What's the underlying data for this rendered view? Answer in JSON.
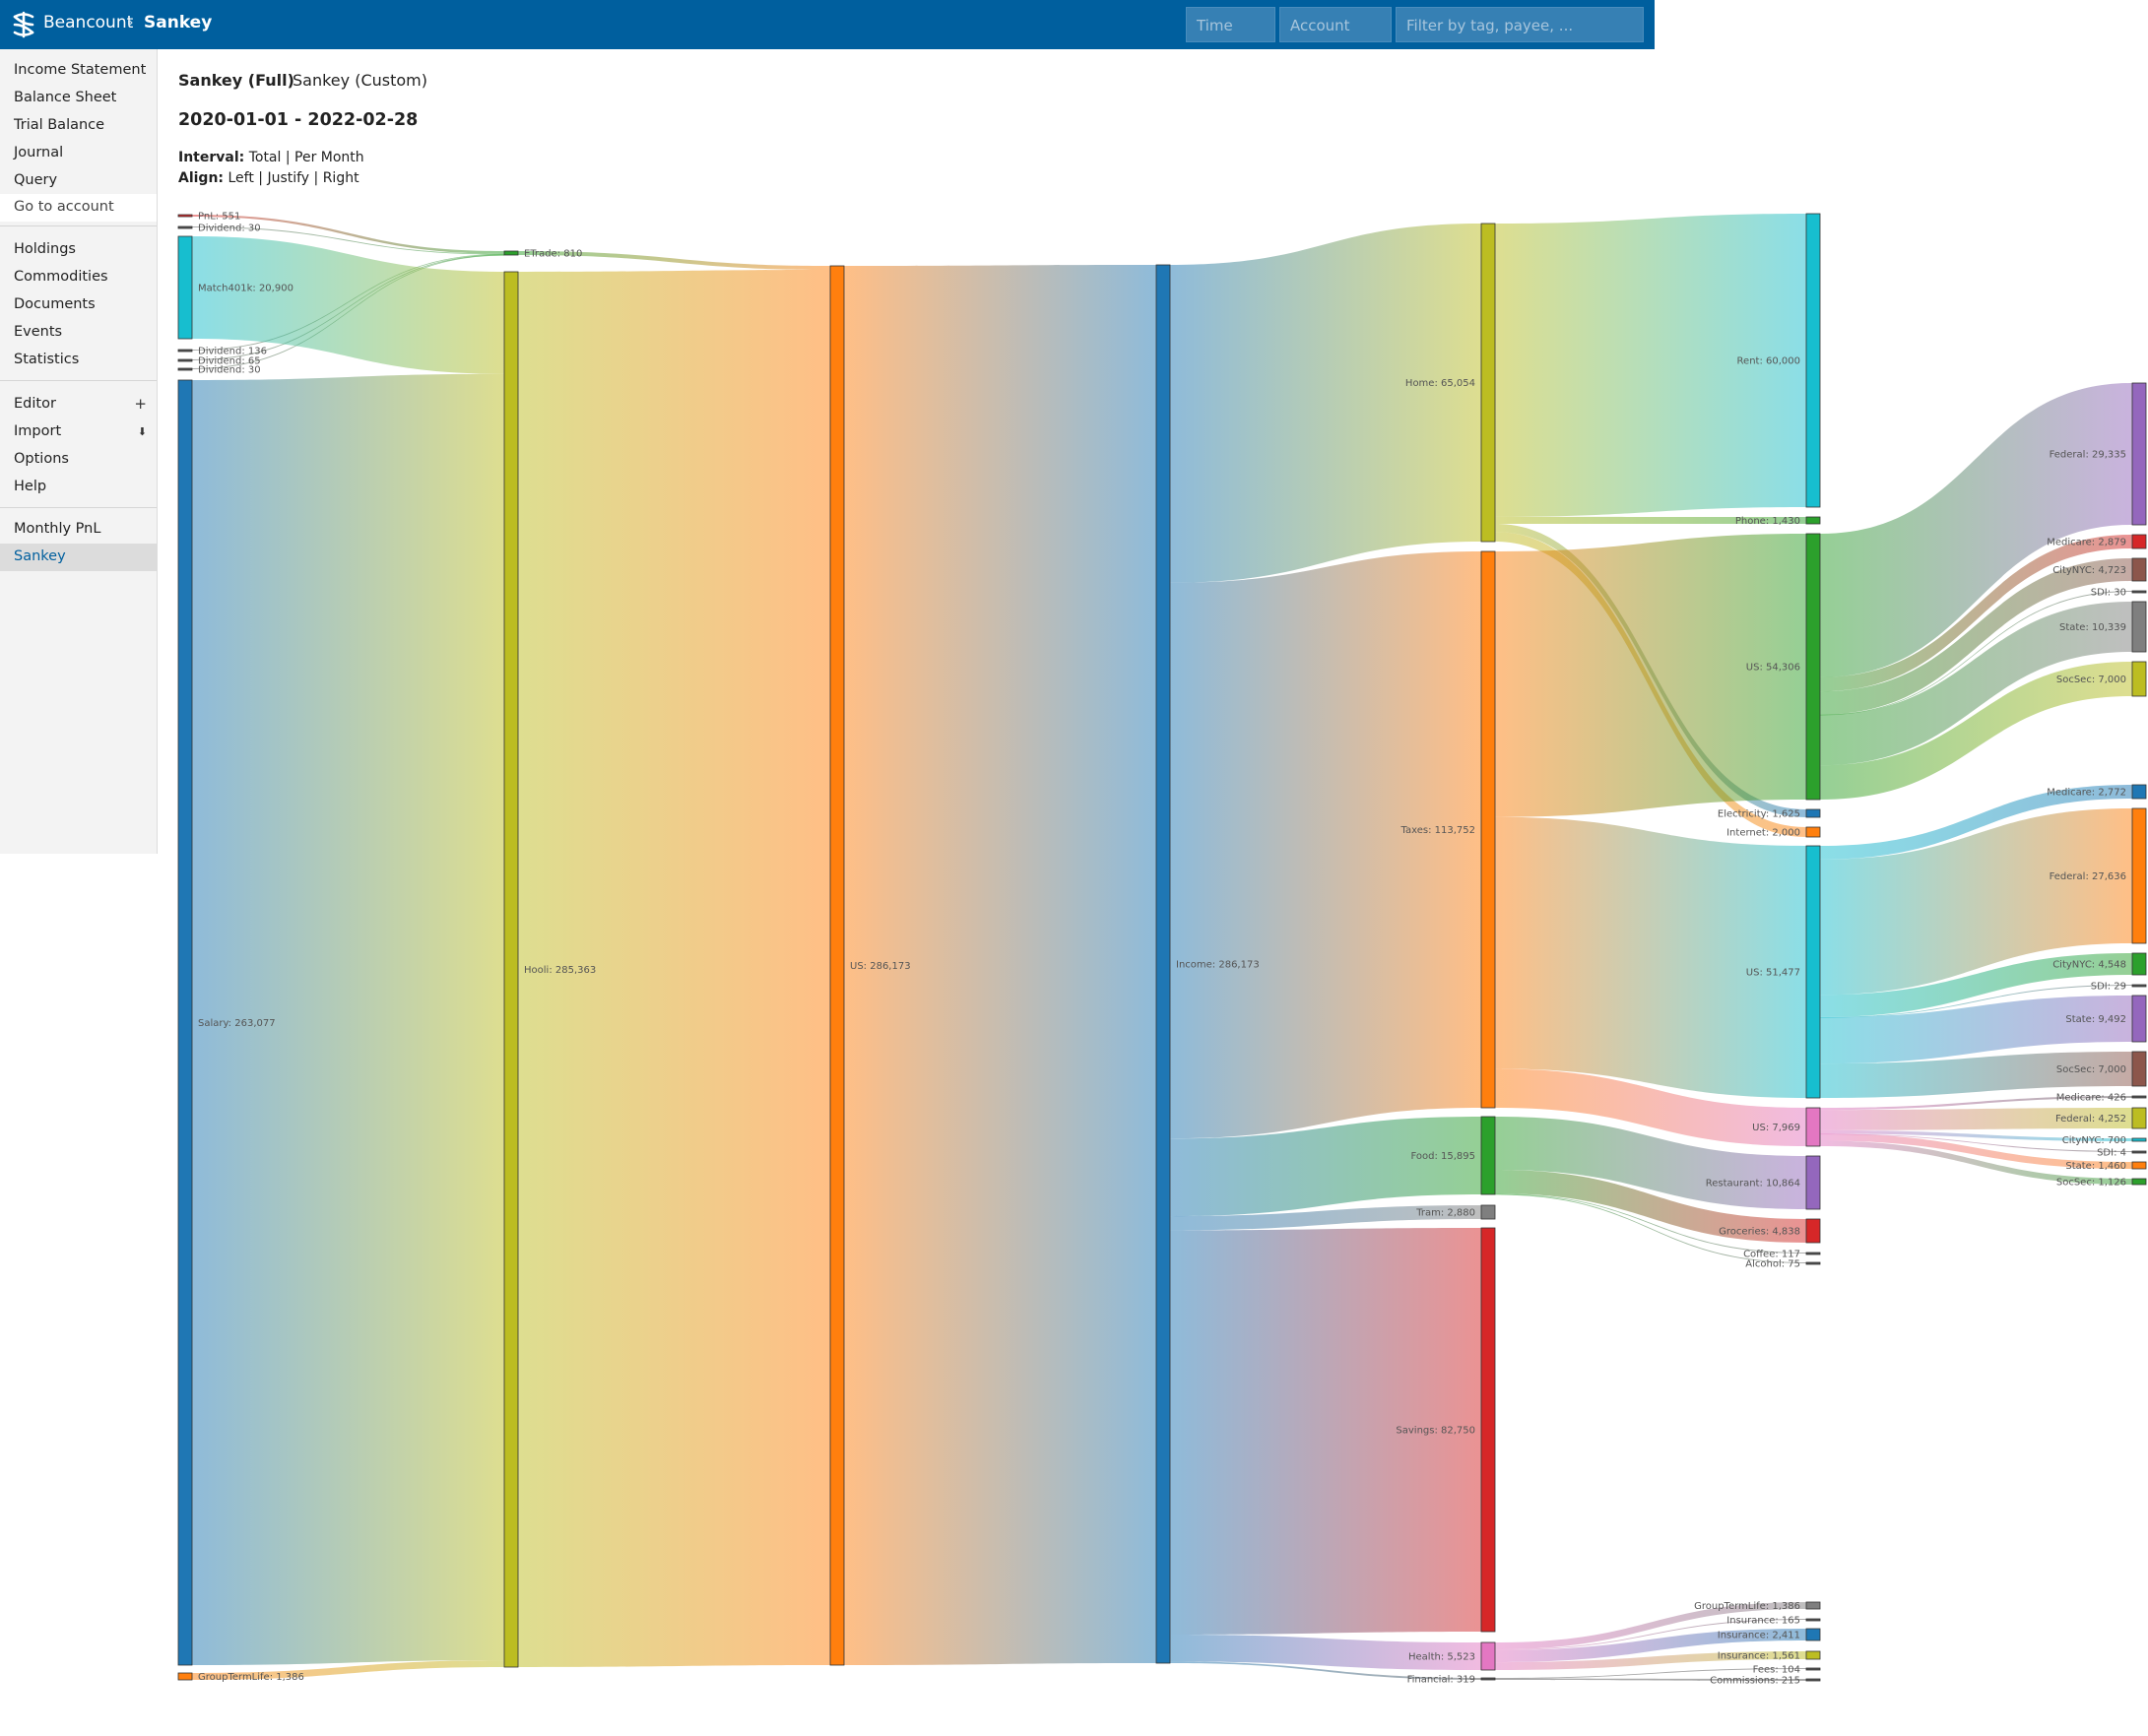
{
  "header": {
    "brand": "Beancount",
    "separator": "›",
    "page": "Sankey",
    "time_placeholder": "Time",
    "account_placeholder": "Account",
    "filter_placeholder": "Filter by tag, payee, ..."
  },
  "sidebar": {
    "reports": [
      "Income Statement",
      "Balance Sheet",
      "Trial Balance",
      "Journal",
      "Query"
    ],
    "goto_account": "Go to account",
    "pages": [
      "Holdings",
      "Commodities",
      "Documents",
      "Events",
      "Statistics"
    ],
    "editor": "Editor",
    "editor_mark": "+",
    "import": "Import",
    "import_mark": "⬇",
    "tools": [
      "Options",
      "Help"
    ],
    "extensions": [
      "Monthly PnL",
      "Sankey"
    ]
  },
  "tabs": [
    "Sankey (Full)",
    "Sankey (Custom)"
  ],
  "date_range": "2020-01-01 - 2022-02-28",
  "interval": {
    "label": "Interval:",
    "options": "Total | Per Month"
  },
  "align": {
    "label": "Align:",
    "options": "Left | Justify | Right"
  },
  "sankey": {
    "nodes": [
      {
        "id": "pnl",
        "label": "PnL: 551",
        "value": 551,
        "color": "#d62728"
      },
      {
        "id": "div30a",
        "label": "Dividend: 30",
        "value": 30,
        "color": "#555555"
      },
      {
        "id": "match",
        "label": "Match401k: 20,900",
        "value": 20900,
        "color": "#17becf"
      },
      {
        "id": "div136",
        "label": "Dividend: 136",
        "value": 136,
        "color": "#555555"
      },
      {
        "id": "div65",
        "label": "Dividend: 65",
        "value": 65,
        "color": "#555555"
      },
      {
        "id": "div30b",
        "label": "Dividend: 30",
        "value": 30,
        "color": "#555555"
      },
      {
        "id": "salary",
        "label": "Salary: 263,077",
        "value": 263077,
        "color": "#1f77b4"
      },
      {
        "id": "gtl_in",
        "label": "GroupTermLife: 1,386",
        "value": 1386,
        "color": "#ff7f0e"
      },
      {
        "id": "etrade",
        "label": "ETrade: 810",
        "value": 810,
        "color": "#2ca02c"
      },
      {
        "id": "hooli",
        "label": "Hooli: 285,363",
        "value": 285363,
        "color": "#bcbd22"
      },
      {
        "id": "us_in",
        "label": "US: 286,173",
        "value": 286173,
        "color": "#ff7f0e"
      },
      {
        "id": "income",
        "label": "Income: 286,173",
        "value": 286173,
        "color": "#1f77b4"
      },
      {
        "id": "home",
        "label": "Home: 65,054",
        "value": 65054,
        "color": "#bcbd22"
      },
      {
        "id": "taxes",
        "label": "Taxes: 113,752",
        "value": 113752,
        "color": "#ff7f0e"
      },
      {
        "id": "food",
        "label": "Food: 15,895",
        "value": 15895,
        "color": "#2ca02c"
      },
      {
        "id": "tram",
        "label": "Tram: 2,880",
        "value": 2880,
        "color": "#7f7f7f"
      },
      {
        "id": "savings",
        "label": "Savings: 82,750",
        "value": 82750,
        "color": "#d62728"
      },
      {
        "id": "health",
        "label": "Health: 5,523",
        "value": 5523,
        "color": "#e377c2"
      },
      {
        "id": "financial",
        "label": "Financial: 319",
        "value": 319,
        "color": "#555555"
      },
      {
        "id": "rent",
        "label": "Rent: 60,000",
        "value": 60000,
        "color": "#17becf"
      },
      {
        "id": "phone",
        "label": "Phone: 1,430",
        "value": 1430,
        "color": "#2ca02c"
      },
      {
        "id": "us_tax1",
        "label": "US: 54,306",
        "value": 54306,
        "color": "#2ca02c"
      },
      {
        "id": "electricity",
        "label": "Electricity: 1,625",
        "value": 1625,
        "color": "#1f77b4"
      },
      {
        "id": "internet",
        "label": "Internet: 2,000",
        "value": 2000,
        "color": "#ff7f0e"
      },
      {
        "id": "us_tax2",
        "label": "US: 51,477",
        "value": 51477,
        "color": "#17becf"
      },
      {
        "id": "us_tax3",
        "label": "US: 7,969",
        "value": 7969,
        "color": "#e377c2"
      },
      {
        "id": "restaurant",
        "label": "Restaurant: 10,864",
        "value": 10864,
        "color": "#9467bd"
      },
      {
        "id": "groceries",
        "label": "Groceries: 4,838",
        "value": 4838,
        "color": "#d62728"
      },
      {
        "id": "coffee",
        "label": "Coffee: 117",
        "value": 117,
        "color": "#555555"
      },
      {
        "id": "alcohol",
        "label": "Alcohol: 75",
        "value": 75,
        "color": "#555555"
      },
      {
        "id": "gtl_out",
        "label": "GroupTermLife: 1,386",
        "value": 1386,
        "color": "#7f7f7f"
      },
      {
        "id": "ins165",
        "label": "Insurance: 165",
        "value": 165,
        "color": "#555555"
      },
      {
        "id": "ins2411",
        "label": "Insurance: 2,411",
        "value": 2411,
        "color": "#1f77b4"
      },
      {
        "id": "ins1561",
        "label": "Insurance: 1,561",
        "value": 1561,
        "color": "#bcbd22"
      },
      {
        "id": "fees",
        "label": "Fees: 104",
        "value": 104,
        "color": "#555555"
      },
      {
        "id": "comm",
        "label": "Commissions: 215",
        "value": 215,
        "color": "#555555"
      },
      {
        "id": "fed1",
        "label": "Federal: 29,335",
        "value": 29335,
        "color": "#9467bd"
      },
      {
        "id": "med1",
        "label": "Medicare: 2,879",
        "value": 2879,
        "color": "#d62728"
      },
      {
        "id": "city1",
        "label": "CityNYC: 4,723",
        "value": 4723,
        "color": "#8c564b"
      },
      {
        "id": "sdi1",
        "label": "SDI: 30",
        "value": 30,
        "color": "#555555"
      },
      {
        "id": "state1",
        "label": "State: 10,339",
        "value": 10339,
        "color": "#7f7f7f"
      },
      {
        "id": "soc1",
        "label": "SocSec: 7,000",
        "value": 7000,
        "color": "#bcbd22"
      },
      {
        "id": "med2",
        "label": "Medicare: 2,772",
        "value": 2772,
        "color": "#1f77b4"
      },
      {
        "id": "fed2",
        "label": "Federal: 27,636",
        "value": 27636,
        "color": "#ff7f0e"
      },
      {
        "id": "city2",
        "label": "CityNYC: 4,548",
        "value": 4548,
        "color": "#2ca02c"
      },
      {
        "id": "sdi2",
        "label": "SDI: 29",
        "value": 29,
        "color": "#555555"
      },
      {
        "id": "state2",
        "label": "State: 9,492",
        "value": 9492,
        "color": "#9467bd"
      },
      {
        "id": "soc2",
        "label": "SocSec: 7,000",
        "value": 7000,
        "color": "#8c564b"
      },
      {
        "id": "med3",
        "label": "Medicare: 426",
        "value": 426,
        "color": "#555555"
      },
      {
        "id": "fed3",
        "label": "Federal: 4,252",
        "value": 4252,
        "color": "#bcbd22"
      },
      {
        "id": "city3",
        "label": "CityNYC: 700",
        "value": 700,
        "color": "#17becf"
      },
      {
        "id": "sdi3",
        "label": "SDI: 4",
        "value": 4,
        "color": "#555555"
      },
      {
        "id": "state3",
        "label": "State: 1,460",
        "value": 1460,
        "color": "#ff7f0e"
      },
      {
        "id": "soc3",
        "label": "SocSec: 1,126",
        "value": 1126,
        "color": "#2ca02c"
      }
    ],
    "links": [
      [
        "pnl",
        "etrade",
        551
      ],
      [
        "div30a",
        "etrade",
        30
      ],
      [
        "div136",
        "etrade",
        136
      ],
      [
        "div65",
        "etrade",
        65
      ],
      [
        "div30b",
        "etrade",
        30
      ],
      [
        "match",
        "hooli",
        20900
      ],
      [
        "salary",
        "hooli",
        263077
      ],
      [
        "gtl_in",
        "hooli",
        1386
      ],
      [
        "etrade",
        "us_in",
        810
      ],
      [
        "hooli",
        "us_in",
        285363
      ],
      [
        "us_in",
        "income",
        286173
      ],
      [
        "income",
        "home",
        65054
      ],
      [
        "income",
        "taxes",
        113752
      ],
      [
        "income",
        "food",
        15895
      ],
      [
        "income",
        "tram",
        2880
      ],
      [
        "income",
        "savings",
        82750
      ],
      [
        "income",
        "health",
        5523
      ],
      [
        "income",
        "financial",
        319
      ],
      [
        "home",
        "rent",
        60000
      ],
      [
        "home",
        "phone",
        1430
      ],
      [
        "home",
        "electricity",
        1625
      ],
      [
        "home",
        "internet",
        2000
      ],
      [
        "taxes",
        "us_tax1",
        54306
      ],
      [
        "taxes",
        "us_tax2",
        51477
      ],
      [
        "taxes",
        "us_tax3",
        7969
      ],
      [
        "food",
        "restaurant",
        10864
      ],
      [
        "food",
        "groceries",
        4838
      ],
      [
        "food",
        "coffee",
        117
      ],
      [
        "food",
        "alcohol",
        75
      ],
      [
        "health",
        "gtl_out",
        1386
      ],
      [
        "health",
        "ins165",
        165
      ],
      [
        "health",
        "ins2411",
        2411
      ],
      [
        "health",
        "ins1561",
        1561
      ],
      [
        "financial",
        "fees",
        104
      ],
      [
        "financial",
        "comm",
        215
      ],
      [
        "us_tax1",
        "fed1",
        29335
      ],
      [
        "us_tax1",
        "med1",
        2879
      ],
      [
        "us_tax1",
        "city1",
        4723
      ],
      [
        "us_tax1",
        "sdi1",
        30
      ],
      [
        "us_tax1",
        "state1",
        10339
      ],
      [
        "us_tax1",
        "soc1",
        7000
      ],
      [
        "us_tax2",
        "med2",
        2772
      ],
      [
        "us_tax2",
        "fed2",
        27636
      ],
      [
        "us_tax2",
        "city2",
        4548
      ],
      [
        "us_tax2",
        "sdi2",
        29
      ],
      [
        "us_tax2",
        "state2",
        9492
      ],
      [
        "us_tax2",
        "soc2",
        7000
      ],
      [
        "us_tax3",
        "med3",
        426
      ],
      [
        "us_tax3",
        "fed3",
        4252
      ],
      [
        "us_tax3",
        "city3",
        700
      ],
      [
        "us_tax3",
        "sdi3",
        4
      ],
      [
        "us_tax3",
        "state3",
        1460
      ],
      [
        "us_tax3",
        "soc3",
        1126
      ]
    ]
  }
}
